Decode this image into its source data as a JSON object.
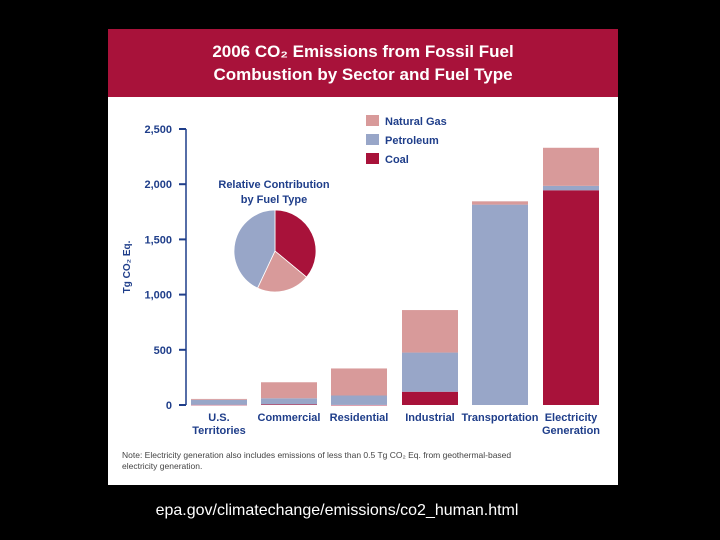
{
  "title_lines": [
    "2006 CO₂ Emissions from Fossil Fuel",
    "Combustion by Sector and Fuel Type"
  ],
  "source": "epa.gov/climatechange/emissions/co2_human.html",
  "colors": {
    "header": "#a8123a",
    "natural_gas": "#d89a9a",
    "petroleum": "#98a6c8",
    "coal": "#a8123a",
    "axis": "#1f3e8a"
  },
  "chart_data": {
    "type": "bar",
    "stacked": true,
    "title": "2006 CO₂ Emissions from Fossil Fuel Combustion by Sector and Fuel Type",
    "ylabel": "Tg CO₂ Eq.",
    "ylim": [
      0,
      2500
    ],
    "yticks": [
      0,
      500,
      1000,
      1500,
      2000,
      2500
    ],
    "ytick_labels": [
      "0",
      "500",
      "1,000",
      "1,500",
      "2,000",
      "2,500"
    ],
    "categories": [
      [
        "U.S.",
        "Territories"
      ],
      [
        "Commercial"
      ],
      [
        "Residential"
      ],
      [
        "Industrial"
      ],
      [
        "Transportation"
      ],
      [
        "Electricity",
        "Generation"
      ]
    ],
    "series": [
      {
        "name": "Coal",
        "key": "coal",
        "values": [
          2,
          6,
          1,
          120,
          0,
          1945
        ]
      },
      {
        "name": "Petroleum",
        "key": "petroleum",
        "values": [
          45,
          55,
          85,
          355,
          1815,
          40
        ]
      },
      {
        "name": "Natural Gas",
        "key": "natural_gas",
        "values": [
          8,
          145,
          245,
          385,
          30,
          345
        ]
      }
    ],
    "legend": [
      "Natural Gas",
      "Petroleum",
      "Coal"
    ],
    "legend_position": "top-right",
    "inset_pie": {
      "title_lines": [
        "Relative Contribution",
        "by Fuel Type"
      ],
      "slices": [
        {
          "name": "Coal",
          "key": "coal",
          "value": 36
        },
        {
          "name": "Natural Gas",
          "key": "natural_gas",
          "value": 21
        },
        {
          "name": "Petroleum",
          "key": "petroleum",
          "value": 43
        }
      ]
    },
    "note_lines": [
      "Note: Electricity generation also includes emissions of less than 0.5 Tg CO₂ Eq. from geothermal-based",
      "electricity generation."
    ]
  }
}
